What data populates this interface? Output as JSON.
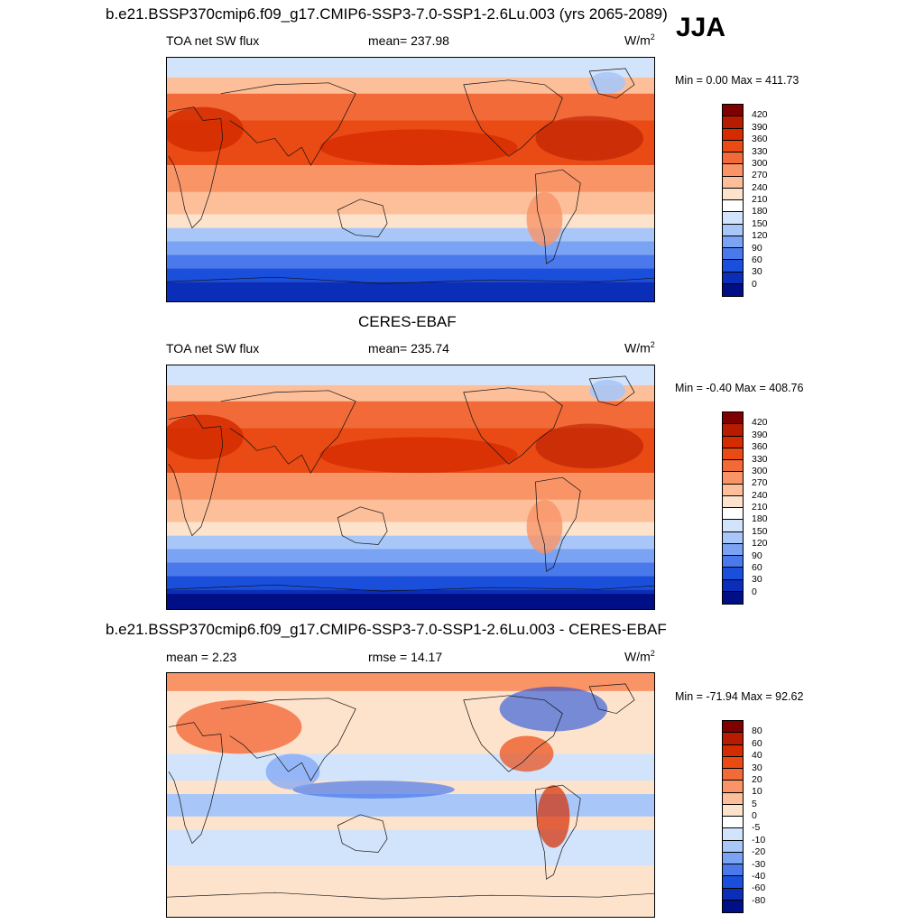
{
  "season": "JJA",
  "panels": [
    {
      "title": "b.e21.BSSP370cmip6.f09_g17.CMIP6-SSP3-7.0-SSP1-2.6Lu.003 (yrs 2065-2089)",
      "left_label": "TOA net SW flux",
      "center_label": "mean= 237.98",
      "units": "W/m",
      "units_sup": "2",
      "minmax": "Min =   0.00 Max = 411.73",
      "kind": "abs",
      "legend": {
        "labels": [
          "420",
          "390",
          "360",
          "330",
          "300",
          "270",
          "240",
          "210",
          "180",
          "150",
          "120",
          "90",
          "60",
          "30",
          "0"
        ],
        "colors": [
          "#7f0000",
          "#b71c00",
          "#d42b00",
          "#ea4a14",
          "#f36a39",
          "#f99466",
          "#fcbf9a",
          "#fee3cc",
          "#ffffff",
          "#d2e4fb",
          "#a8c7f8",
          "#7ba3f3",
          "#4a79ec",
          "#1a4fdc",
          "#0a2eb8",
          "#000f85"
        ]
      }
    },
    {
      "title": "CERES-EBAF",
      "left_label": "TOA net SW flux",
      "center_label": "mean= 235.74",
      "units": "W/m",
      "units_sup": "2",
      "minmax": "Min =  -0.40 Max = 408.76",
      "kind": "abs",
      "legend": {
        "labels": [
          "420",
          "390",
          "360",
          "330",
          "300",
          "270",
          "240",
          "210",
          "180",
          "150",
          "120",
          "90",
          "60",
          "30",
          "0"
        ],
        "colors": [
          "#7f0000",
          "#b71c00",
          "#d42b00",
          "#ea4a14",
          "#f36a39",
          "#f99466",
          "#fcbf9a",
          "#fee3cc",
          "#ffffff",
          "#d2e4fb",
          "#a8c7f8",
          "#7ba3f3",
          "#4a79ec",
          "#1a4fdc",
          "#0a2eb8",
          "#000f85"
        ]
      }
    },
    {
      "title": "b.e21.BSSP370cmip6.f09_g17.CMIP6-SSP3-7.0-SSP1-2.6Lu.003 - CERES-EBAF",
      "left_label": "mean =   2.23",
      "center_label": "rmse =  14.17",
      "units": "W/m",
      "units_sup": "2",
      "minmax": "Min = -71.94 Max =  92.62",
      "kind": "diff",
      "legend": {
        "labels": [
          "80",
          "60",
          "40",
          "30",
          "20",
          "10",
          "5",
          "0",
          "-5",
          "-10",
          "-20",
          "-30",
          "-40",
          "-60",
          "-80"
        ],
        "colors": [
          "#7f0000",
          "#b71c00",
          "#d42b00",
          "#ea4a14",
          "#f36a39",
          "#f99466",
          "#fcbf9a",
          "#fee3cc",
          "#ffffff",
          "#d2e4fb",
          "#a8c7f8",
          "#7ba3f3",
          "#4a79ec",
          "#1a4fdc",
          "#0a2eb8",
          "#000f85"
        ]
      }
    }
  ]
}
